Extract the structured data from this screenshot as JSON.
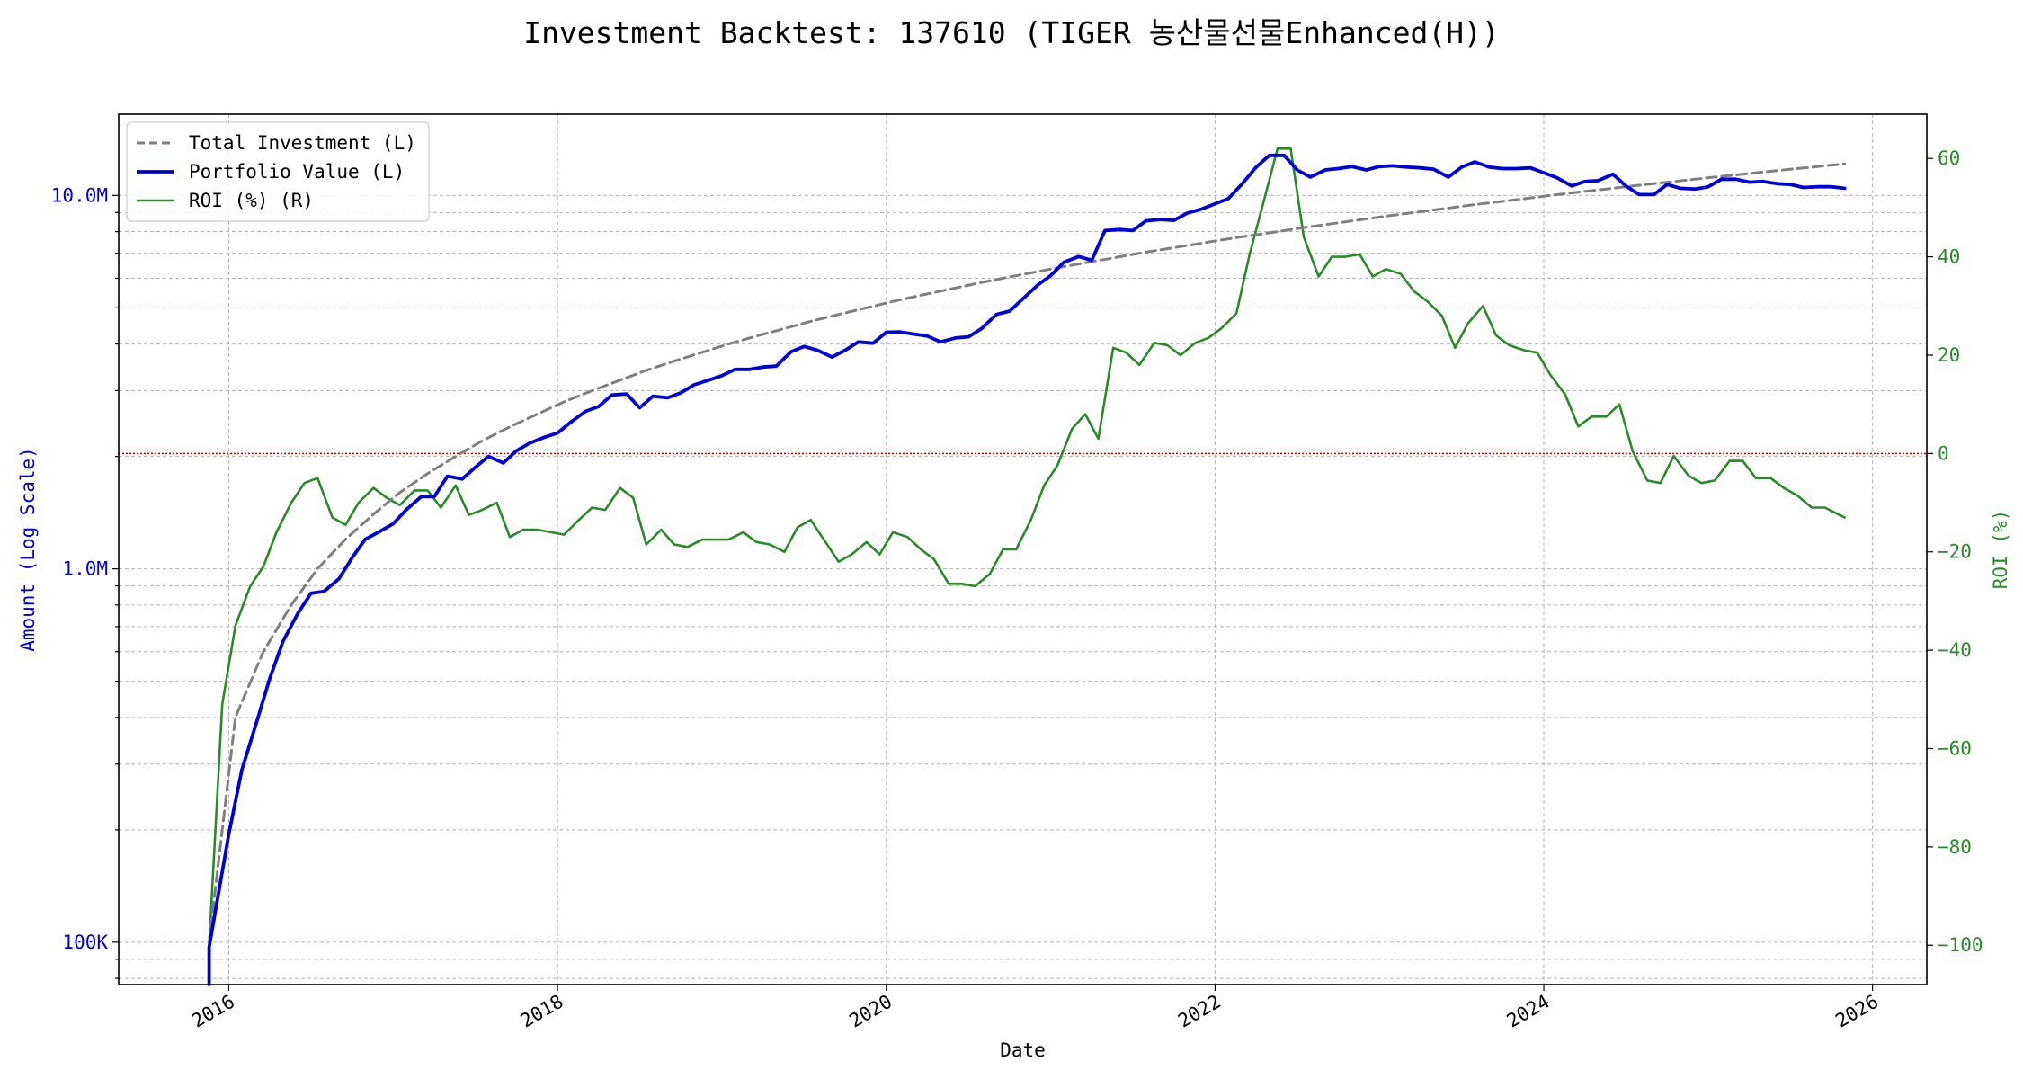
{
  "chart_data": {
    "type": "line",
    "title": "Investment Backtest: 137610 (TIGER 농산물선물Enhanced(H))",
    "xlabel": "Date",
    "ylabel_left": "Amount (Log Scale)",
    "ylabel_right": "ROI (%)",
    "y_left_scale": "log",
    "y_left_range": [
      77000,
      16500000
    ],
    "y_left_ticks": [
      100000,
      1000000,
      10000000
    ],
    "y_left_tick_labels": [
      "100K",
      "1.0M",
      "10.0M"
    ],
    "y_right_range": [
      -108,
      69
    ],
    "y_right_ticks": [
      -100,
      -80,
      -60,
      -40,
      -20,
      0,
      20,
      40,
      60
    ],
    "y_right_tick_labels": [
      "−100",
      "−80",
      "−60",
      "−40",
      "−20",
      "0",
      "20",
      "40",
      "60"
    ],
    "x_range": [
      2015.33,
      2026.33
    ],
    "x_ticks": [
      2016,
      2018,
      2020,
      2022,
      2024,
      2026
    ],
    "x_tick_labels": [
      "2016",
      "2018",
      "2020",
      "2022",
      "2024",
      "2026"
    ],
    "grid": true,
    "legend_position": "top-left",
    "zero_line_color": "#cc0000",
    "series": [
      {
        "name": "Total Investment (L)",
        "axis": "left",
        "color": "#7f7f7f",
        "style": "dashed",
        "x": [
          2015.88,
          2016.04,
          2016.21,
          2016.38,
          2016.54,
          2016.71,
          2016.88,
          2017.04,
          2017.21,
          2017.38,
          2017.54,
          2017.71,
          2017.88,
          2018.04,
          2018.21,
          2018.38,
          2018.54,
          2018.71,
          2018.88,
          2019.04,
          2019.21,
          2019.38,
          2019.54,
          2019.71,
          2019.88,
          2020.04,
          2020.21,
          2020.38,
          2020.54,
          2020.71,
          2020.88,
          2021.04,
          2021.21,
          2021.38,
          2021.54,
          2021.71,
          2021.88,
          2022.04,
          2022.21,
          2022.38,
          2022.54,
          2022.71,
          2022.88,
          2023.04,
          2023.21,
          2023.38,
          2023.54,
          2023.71,
          2023.88,
          2024.04,
          2024.21,
          2024.38,
          2024.54,
          2024.71,
          2024.88,
          2025.04,
          2025.21,
          2025.38,
          2025.54,
          2025.71,
          2025.83
        ],
        "values": [
          100000,
          400000,
          600000,
          800000,
          1000000,
          1200000,
          1400000,
          1600000,
          1800000,
          2000000,
          2200000,
          2400000,
          2600000,
          2800000,
          3000000,
          3200000,
          3400000,
          3600000,
          3800000,
          4000000,
          4200000,
          4400000,
          4600000,
          4800000,
          5000000,
          5200000,
          5400000,
          5600000,
          5800000,
          6000000,
          6200000,
          6400000,
          6600000,
          6800000,
          7000000,
          7200000,
          7400000,
          7600000,
          7800000,
          8000000,
          8200000,
          8400000,
          8600000,
          8800000,
          9000000,
          9200000,
          9400000,
          9600000,
          9800000,
          10000000,
          10200000,
          10400000,
          10600000,
          10800000,
          11000000,
          11200000,
          11400000,
          11600000,
          11800000,
          12000000,
          12150000
        ]
      },
      {
        "name": "Portfolio Value (L)",
        "axis": "left",
        "color": "#0000dd",
        "style": "solid",
        "x": [
          2015.88,
          2015.88,
          2016.0,
          2016.08,
          2016.17,
          2016.25,
          2016.33,
          2016.42,
          2016.5,
          2016.58,
          2016.67,
          2016.75,
          2016.83,
          2016.92,
          2017.0,
          2017.08,
          2017.17,
          2017.25,
          2017.33,
          2017.42,
          2017.5,
          2017.58,
          2017.67,
          2017.75,
          2017.83,
          2017.92,
          2018.0,
          2018.08,
          2018.17,
          2018.25,
          2018.33,
          2018.42,
          2018.5,
          2018.58,
          2018.67,
          2018.75,
          2018.83,
          2018.92,
          2019.0,
          2019.08,
          2019.17,
          2019.25,
          2019.33,
          2019.42,
          2019.5,
          2019.58,
          2019.67,
          2019.75,
          2019.83,
          2019.92,
          2020.0,
          2020.08,
          2020.17,
          2020.25,
          2020.33,
          2020.42,
          2020.5,
          2020.58,
          2020.67,
          2020.75,
          2020.83,
          2020.92,
          2021.0,
          2021.08,
          2021.17,
          2021.25,
          2021.33,
          2021.42,
          2021.5,
          2021.58,
          2021.67,
          2021.75,
          2021.83,
          2021.92,
          2022.0,
          2022.08,
          2022.17,
          2022.25,
          2022.33,
          2022.42,
          2022.5,
          2022.58,
          2022.67,
          2022.75,
          2022.83,
          2022.92,
          2023.0,
          2023.08,
          2023.17,
          2023.25,
          2023.33,
          2023.42,
          2023.5,
          2023.58,
          2023.67,
          2023.75,
          2023.83,
          2023.92,
          2024.0,
          2024.08,
          2024.17,
          2024.25,
          2024.33,
          2024.42,
          2024.5,
          2024.58,
          2024.67,
          2024.75,
          2024.83,
          2024.92,
          2025.0,
          2025.08,
          2025.17,
          2025.25,
          2025.33,
          2025.42,
          2025.5,
          2025.58,
          2025.67,
          2025.75,
          2025.83
        ],
        "values": [
          77000,
          97000,
          195000,
          290000,
          390000,
          510000,
          640000,
          760000,
          860000,
          870000,
          940000,
          1070000,
          1200000,
          1260000,
          1320000,
          1440000,
          1560000,
          1560000,
          1770000,
          1740000,
          1870000,
          2000000,
          1920000,
          2070000,
          2170000,
          2250000,
          2310000,
          2470000,
          2640000,
          2720000,
          2920000,
          2940000,
          2700000,
          2900000,
          2870000,
          2960000,
          3110000,
          3200000,
          3290000,
          3420000,
          3420000,
          3470000,
          3490000,
          3810000,
          3940000,
          3850000,
          3690000,
          3850000,
          4050000,
          4020000,
          4300000,
          4310000,
          4250000,
          4200000,
          4050000,
          4150000,
          4180000,
          4400000,
          4800000,
          4900000,
          5280000,
          5750000,
          6100000,
          6620000,
          6860000,
          6700000,
          8050000,
          8100000,
          8050000,
          8550000,
          8620000,
          8570000,
          8960000,
          9200000,
          9500000,
          9800000,
          10800000,
          11900000,
          12800000,
          12800000,
          11700000,
          11200000,
          11700000,
          11800000,
          11950000,
          11700000,
          11950000,
          12000000,
          11900000,
          11850000,
          11750000,
          11200000,
          11900000,
          12300000,
          11900000,
          11800000,
          11800000,
          11850000,
          11500000,
          11150000,
          10600000,
          10900000,
          10950000,
          11400000,
          10600000,
          10050000,
          10050000,
          10700000,
          10450000,
          10400000,
          10550000,
          11050000,
          11050000,
          10850000,
          10900000,
          10750000,
          10700000,
          10500000,
          10550000,
          10550000,
          10450000
        ]
      },
      {
        "name": "ROI (%) (R)",
        "axis": "right",
        "color": "#2a8a2a",
        "style": "solid",
        "x": [
          2015.88,
          2015.96,
          2016.04,
          2016.13,
          2016.21,
          2016.29,
          2016.38,
          2016.46,
          2016.54,
          2016.63,
          2016.71,
          2016.79,
          2016.88,
          2016.96,
          2017.04,
          2017.13,
          2017.21,
          2017.29,
          2017.38,
          2017.46,
          2017.54,
          2017.63,
          2017.71,
          2017.79,
          2017.88,
          2017.96,
          2018.04,
          2018.13,
          2018.21,
          2018.29,
          2018.38,
          2018.46,
          2018.54,
          2018.63,
          2018.71,
          2018.79,
          2018.88,
          2018.96,
          2019.04,
          2019.13,
          2019.21,
          2019.29,
          2019.38,
          2019.46,
          2019.54,
          2019.63,
          2019.71,
          2019.79,
          2019.88,
          2019.96,
          2020.04,
          2020.13,
          2020.21,
          2020.29,
          2020.38,
          2020.46,
          2020.54,
          2020.63,
          2020.71,
          2020.79,
          2020.88,
          2020.96,
          2021.04,
          2021.13,
          2021.21,
          2021.29,
          2021.38,
          2021.46,
          2021.54,
          2021.63,
          2021.71,
          2021.79,
          2021.88,
          2021.96,
          2022.04,
          2022.13,
          2022.21,
          2022.29,
          2022.38,
          2022.46,
          2022.54,
          2022.63,
          2022.71,
          2022.79,
          2022.88,
          2022.96,
          2023.04,
          2023.13,
          2023.21,
          2023.29,
          2023.38,
          2023.46,
          2023.54,
          2023.63,
          2023.71,
          2023.79,
          2023.88,
          2023.96,
          2024.04,
          2024.13,
          2024.21,
          2024.29,
          2024.38,
          2024.46,
          2024.54,
          2024.63,
          2024.71,
          2024.79,
          2024.88,
          2024.96,
          2025.04,
          2025.13,
          2025.21,
          2025.29,
          2025.38,
          2025.46,
          2025.54,
          2025.63,
          2025.71,
          2025.83
        ],
        "values": [
          -100,
          -51,
          -35,
          -27,
          -23,
          -16,
          -10,
          -6,
          -5,
          -13,
          -14.5,
          -10,
          -7,
          -9,
          -10.5,
          -7.5,
          -7.5,
          -11,
          -6.5,
          -12.5,
          -11.5,
          -10,
          -17,
          -15.5,
          -15.5,
          -16,
          -16.5,
          -13.5,
          -11,
          -11.5,
          -7,
          -9,
          -18.5,
          -15.5,
          -18.5,
          -19,
          -17.5,
          -17.5,
          -17.5,
          -16,
          -18,
          -18.5,
          -20,
          -15,
          -13.5,
          -18,
          -22,
          -20.5,
          -18,
          -20.5,
          -16,
          -17,
          -19.5,
          -21.5,
          -26.5,
          -26.5,
          -27,
          -24.5,
          -19.5,
          -19.5,
          -13.5,
          -6.5,
          -2.5,
          5,
          8,
          3,
          21.5,
          20.5,
          18,
          22.5,
          22,
          20,
          22.5,
          23.5,
          25.5,
          28.5,
          40.5,
          50.5,
          62,
          62,
          44,
          36,
          40,
          40,
          40.5,
          36,
          37.5,
          36.5,
          33,
          31,
          28,
          21.5,
          26.5,
          30,
          24,
          22,
          21,
          20.5,
          16,
          12,
          5.5,
          7.5,
          7.5,
          10,
          0.5,
          -5.5,
          -6,
          -0.5,
          -4.5,
          -6,
          -5.5,
          -1.5,
          -1.5,
          -5,
          -5,
          -7,
          -8.5,
          -11,
          -11,
          -13
        ]
      }
    ]
  }
}
